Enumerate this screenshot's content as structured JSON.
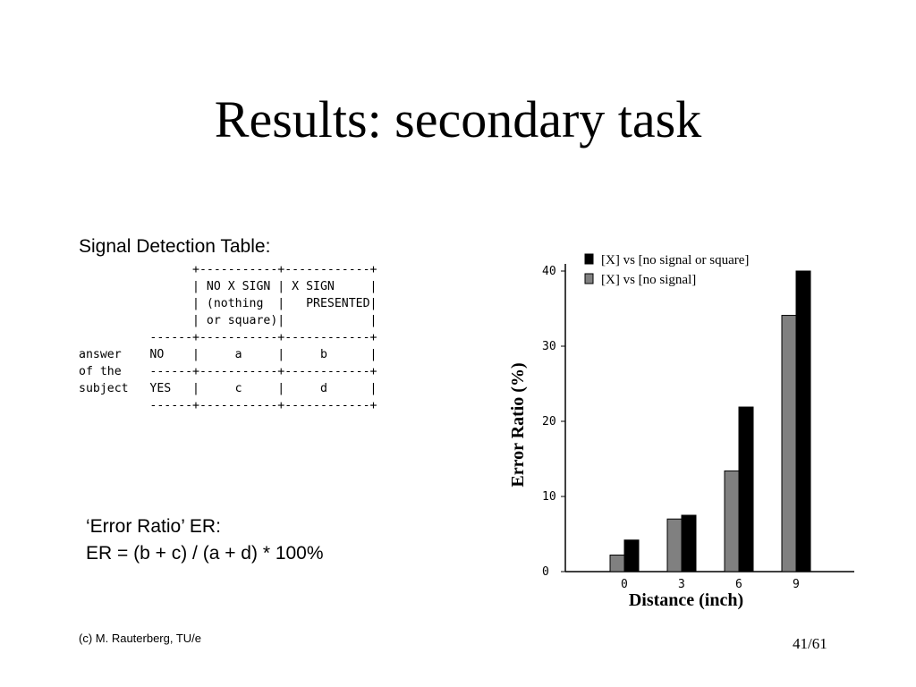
{
  "slide": {
    "title": "Results: secondary task",
    "signal_table_label": "Signal Detection Table:",
    "signal_table_ascii": "                +-----------+------------+\n                | NO X SIGN | X SIGN     |\n                | (nothing  |   PRESENTED|\n                | or square)|            |\n          ------+-----------+------------+\nanswer    NO    |     a     |     b      |\nof the    ------+-----------+------------+\nsubject   YES   |     c     |     d      |\n          ------+-----------+------------+",
    "error_ratio_label": "‘Error Ratio’ ER:",
    "error_ratio_formula": "ER = (b + c) / (a + d) * 100%",
    "footer_left": "(c) M. Rauterberg, TU/e",
    "page_number": "41/61"
  },
  "colors": {
    "series_gray": "#808080",
    "series_black": "#000000"
  },
  "chart_data": {
    "type": "bar",
    "categories": [
      "0",
      "3",
      "6",
      "9"
    ],
    "series": [
      {
        "name": "[X] vs [no signal]",
        "values": [
          2.2,
          7.0,
          13.4,
          34.1
        ],
        "color": "#808080"
      },
      {
        "name": "[X] vs [no signal or square]",
        "values": [
          4.2,
          7.5,
          21.9,
          40.0
        ],
        "color": "#000000"
      }
    ],
    "ylim": [
      0,
      40
    ],
    "yticks": [
      0,
      10,
      20,
      30,
      40
    ],
    "xlabel": "Distance (inch)",
    "ylabel": "Error Ratio (%)",
    "legend": {
      "placement": "top",
      "order": [
        "[X] vs [no signal or square]",
        "[X] vs [no signal]"
      ]
    },
    "grid": false
  }
}
